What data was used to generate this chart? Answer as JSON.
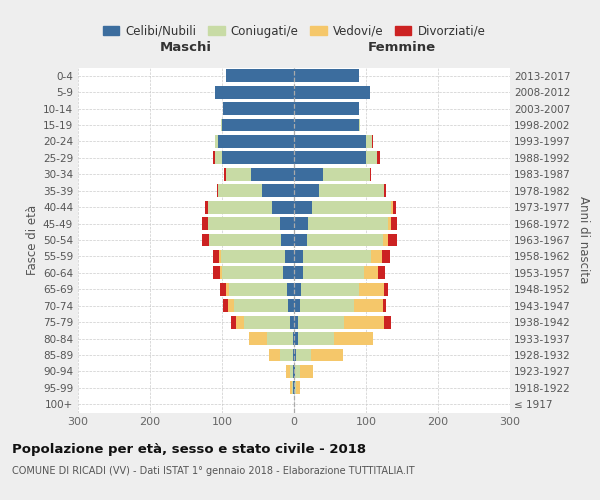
{
  "age_groups": [
    "100+",
    "95-99",
    "90-94",
    "85-89",
    "80-84",
    "75-79",
    "70-74",
    "65-69",
    "60-64",
    "55-59",
    "50-54",
    "45-49",
    "40-44",
    "35-39",
    "30-34",
    "25-29",
    "20-24",
    "15-19",
    "10-14",
    "5-9",
    "0-4"
  ],
  "birth_years": [
    "≤ 1917",
    "1918-1922",
    "1923-1927",
    "1928-1932",
    "1933-1937",
    "1938-1942",
    "1943-1947",
    "1948-1952",
    "1953-1957",
    "1958-1962",
    "1963-1967",
    "1968-1972",
    "1973-1977",
    "1978-1982",
    "1983-1987",
    "1988-1992",
    "1993-1997",
    "1998-2002",
    "2003-2007",
    "2008-2012",
    "2013-2017"
  ],
  "males_celibi": [
    0,
    1,
    1,
    2,
    2,
    5,
    8,
    10,
    15,
    12,
    18,
    20,
    30,
    45,
    60,
    100,
    105,
    100,
    98,
    110,
    95
  ],
  "males_coniugati": [
    0,
    2,
    5,
    18,
    35,
    65,
    75,
    80,
    85,
    90,
    100,
    100,
    90,
    60,
    35,
    10,
    5,
    2,
    0,
    0,
    0
  ],
  "males_vedovi": [
    0,
    2,
    5,
    15,
    25,
    10,
    8,
    5,
    3,
    2,
    0,
    0,
    0,
    0,
    0,
    0,
    0,
    0,
    0,
    0,
    0
  ],
  "males_divorziati": [
    0,
    0,
    0,
    0,
    0,
    8,
    8,
    8,
    10,
    8,
    10,
    8,
    3,
    2,
    2,
    2,
    0,
    0,
    0,
    0,
    0
  ],
  "females_nubili": [
    0,
    1,
    1,
    3,
    5,
    5,
    8,
    10,
    12,
    12,
    18,
    20,
    25,
    35,
    40,
    100,
    100,
    90,
    90,
    105,
    90
  ],
  "females_coniugate": [
    0,
    2,
    8,
    20,
    50,
    65,
    75,
    80,
    85,
    95,
    105,
    110,
    110,
    90,
    65,
    15,
    8,
    2,
    0,
    0,
    0
  ],
  "females_vedove": [
    0,
    5,
    18,
    45,
    55,
    55,
    40,
    35,
    20,
    15,
    8,
    5,
    2,
    0,
    0,
    0,
    0,
    0,
    0,
    0,
    0
  ],
  "females_divorziate": [
    0,
    0,
    0,
    0,
    0,
    10,
    5,
    5,
    10,
    12,
    12,
    8,
    5,
    3,
    2,
    5,
    2,
    0,
    0,
    0,
    0
  ],
  "color_celibi": "#3c6d9e",
  "color_coniugati": "#c8dba5",
  "color_vedovi": "#f5c76a",
  "color_divorziati": "#cc2222",
  "xlim": 300,
  "title": "Popolazione per età, sesso e stato civile - 2018",
  "subtitle": "COMUNE DI RICADI (VV) - Dati ISTAT 1° gennaio 2018 - Elaborazione TUTTITALIA.IT",
  "ylabel_left": "Fasce di età",
  "ylabel_right": "Anni di nascita",
  "label_maschi": "Maschi",
  "label_femmine": "Femmine",
  "legend_labels": [
    "Celibi/Nubili",
    "Coniugati/e",
    "Vedovi/e",
    "Divorziati/e"
  ],
  "bg_color": "#eeeeee",
  "plot_bg": "#ffffff"
}
